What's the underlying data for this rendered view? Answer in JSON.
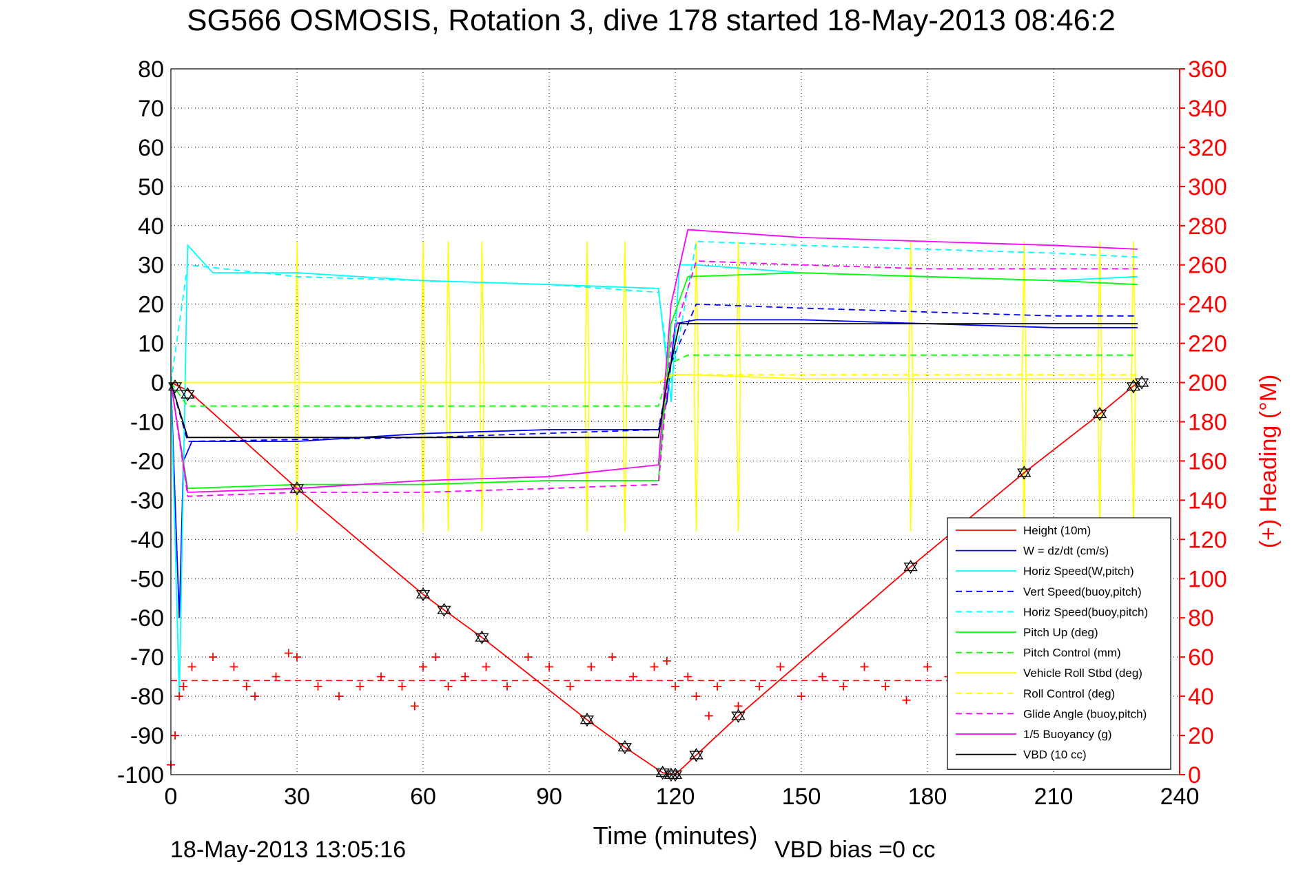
{
  "chart_data": {
    "type": "line",
    "title": "SG566 OSMOSIS, Rotation 3, dive 178 started 18-May-2013 08:46:2",
    "xlabel": "Time (minutes)",
    "ylabel_right": "(+) Heading (°M)",
    "footer_left": "18-May-2013 13:05:16",
    "footer_right": "VBD bias =0 cc",
    "xlim": [
      0,
      240
    ],
    "ylim": [
      -100,
      80
    ],
    "ylim_right": [
      0,
      360
    ],
    "xticks": [
      "0",
      "30",
      "60",
      "90",
      "120",
      "150",
      "180",
      "210",
      "240"
    ],
    "yticks": [
      "80",
      "70",
      "60",
      "50",
      "40",
      "30",
      "20",
      "10",
      "0",
      "-10",
      "-20",
      "-30",
      "-40",
      "-50",
      "-60",
      "-70",
      "-80",
      "-90",
      "-100"
    ],
    "yticks_right": [
      "360",
      "340",
      "320",
      "300",
      "280",
      "260",
      "240",
      "220",
      "200",
      "180",
      "160",
      "140",
      "120",
      "100",
      "80",
      "60",
      "40",
      "20",
      "0"
    ],
    "grid": true,
    "legend_position": "bottom-right",
    "right_axis_color": "#ff0000",
    "series": [
      {
        "name": "Height (10m)",
        "color": "#ff0000",
        "style": "solid",
        "x": [
          0,
          2,
          4,
          30,
          60,
          65,
          74,
          99,
          108,
          117,
          120,
          125,
          135,
          176,
          203,
          221,
          230
        ],
        "y": [
          0,
          -1,
          -2,
          -27,
          -54,
          -58,
          -65,
          -86,
          -93,
          -99.5,
          -100,
          -95,
          -85,
          -47,
          -23,
          -8,
          0
        ]
      },
      {
        "name": "W = dz/dt (cm/s)",
        "color": "#0000ff",
        "style": "solid",
        "x": [
          0,
          1,
          2,
          3,
          5,
          30,
          60,
          90,
          116,
          118,
          120,
          125,
          150,
          180,
          210,
          230
        ],
        "y": [
          0,
          -30,
          -60,
          -20,
          -15,
          -15,
          -13,
          -12,
          -12,
          -5,
          15,
          16,
          16,
          15,
          14,
          14
        ]
      },
      {
        "name": "Horiz Speed(W,pitch)",
        "color": "#00ffff",
        "style": "solid",
        "x": [
          0,
          2,
          4,
          10,
          30,
          60,
          90,
          116,
          119,
          121,
          125,
          150,
          180,
          210,
          230
        ],
        "y": [
          0,
          -80,
          35,
          28,
          28,
          26,
          25,
          24,
          -5,
          30,
          30,
          28,
          27,
          26,
          27
        ]
      },
      {
        "name": "Vert Speed(buoy,pitch)",
        "color": "#0000ff",
        "style": "dashed",
        "x": [
          0,
          4,
          60,
          116,
          119,
          125,
          150,
          180,
          210,
          230
        ],
        "y": [
          0,
          -15,
          -14,
          -12,
          5,
          20,
          19,
          18,
          17,
          17
        ]
      },
      {
        "name": "Horiz Speed(buoy,pitch)",
        "color": "#00ffff",
        "style": "dashed",
        "x": [
          0,
          4,
          30,
          60,
          90,
          116,
          119,
          125,
          150,
          180,
          210,
          230
        ],
        "y": [
          0,
          30,
          27,
          26,
          25,
          23,
          0,
          36,
          35,
          34,
          33,
          32
        ]
      },
      {
        "name": "Pitch Up (deg)",
        "color": "#00ff00",
        "style": "solid",
        "x": [
          0,
          4,
          30,
          60,
          90,
          116,
          119,
          123,
          150,
          180,
          210,
          230
        ],
        "y": [
          0,
          -27,
          -26,
          -26,
          -25,
          -25,
          15,
          27,
          28,
          27,
          26,
          25
        ]
      },
      {
        "name": "Pitch Control (mm)",
        "color": "#00ff00",
        "style": "dashed",
        "x": [
          0,
          4,
          116,
          119,
          123,
          230
        ],
        "y": [
          0,
          -6,
          -6,
          5,
          7,
          7
        ]
      },
      {
        "name": "Vehicle Roll Stbd (deg)",
        "color": "#ffff00",
        "style": "solid",
        "x": [
          0,
          4,
          30,
          60,
          90,
          116,
          119,
          123,
          150,
          180,
          210,
          230
        ],
        "y": [
          0,
          0,
          0,
          0,
          0,
          0,
          2,
          2,
          1,
          1,
          1,
          1
        ]
      },
      {
        "name": "Roll Control (deg)",
        "color": "#ffff00",
        "style": "dashed",
        "x": [
          0,
          4,
          116,
          120,
          230
        ],
        "y": [
          0,
          0,
          0,
          2,
          2
        ]
      },
      {
        "name": "Glide Angle (buoy,pitch)",
        "color": "#ff00ff",
        "style": "dashed",
        "x": [
          0,
          4,
          30,
          60,
          90,
          116,
          119,
          125,
          150,
          180,
          210,
          230
        ],
        "y": [
          0,
          -29,
          -28,
          -28,
          -27,
          -26,
          10,
          31,
          30,
          29,
          29,
          29
        ]
      },
      {
        "name": "1/5 Buoyancy (g)",
        "color": "#ff00ff",
        "style": "solid",
        "x": [
          0,
          4,
          30,
          60,
          90,
          116,
          119,
          123,
          150,
          180,
          210,
          230
        ],
        "y": [
          0,
          -28,
          -27,
          -25,
          -24,
          -21,
          20,
          39,
          37,
          36,
          35,
          34
        ]
      },
      {
        "name": "VBD (10 cc)",
        "color": "#000000",
        "style": "solid",
        "x": [
          0,
          4,
          116,
          118,
          121,
          230
        ],
        "y": [
          0,
          -14,
          -14,
          0,
          15,
          15
        ]
      }
    ],
    "heading_scatter": {
      "name": "Heading",
      "color": "#ff0000",
      "axis": "right",
      "x": [
        0,
        1,
        2,
        3,
        5,
        10,
        15,
        18,
        20,
        25,
        28,
        30,
        35,
        40,
        45,
        50,
        55,
        58,
        60,
        63,
        66,
        70,
        75,
        80,
        85,
        90,
        95,
        100,
        105,
        110,
        115,
        118,
        120,
        123,
        125,
        128,
        130,
        135,
        140,
        145,
        150,
        155,
        160,
        165,
        170,
        175,
        180,
        185,
        190
      ],
      "y": [
        5,
        20,
        40,
        45,
        55,
        60,
        55,
        45,
        40,
        50,
        62,
        60,
        45,
        40,
        45,
        50,
        45,
        35,
        55,
        60,
        45,
        50,
        55,
        45,
        60,
        55,
        45,
        55,
        60,
        50,
        55,
        58,
        45,
        50,
        40,
        30,
        45,
        35,
        45,
        55,
        40,
        50,
        45,
        55,
        45,
        38,
        55,
        50,
        48
      ]
    },
    "heading_mean": {
      "color": "#ff0000",
      "style": "dashed",
      "axis": "right",
      "value": 48
    },
    "waypoints": {
      "x": [
        1,
        4,
        30,
        60,
        65,
        74,
        99,
        108,
        117,
        119,
        120,
        125,
        135,
        176,
        203,
        221,
        229,
        231
      ],
      "y": [
        -1,
        -3,
        -27,
        -54,
        -58,
        -65,
        -86,
        -93,
        -99.5,
        -100,
        -100,
        -95,
        -85,
        -47,
        -23,
        -8,
        -1,
        0
      ]
    },
    "spikes": [
      30,
      60,
      66,
      74,
      99,
      108,
      125,
      135,
      176,
      203,
      221,
      229
    ]
  }
}
